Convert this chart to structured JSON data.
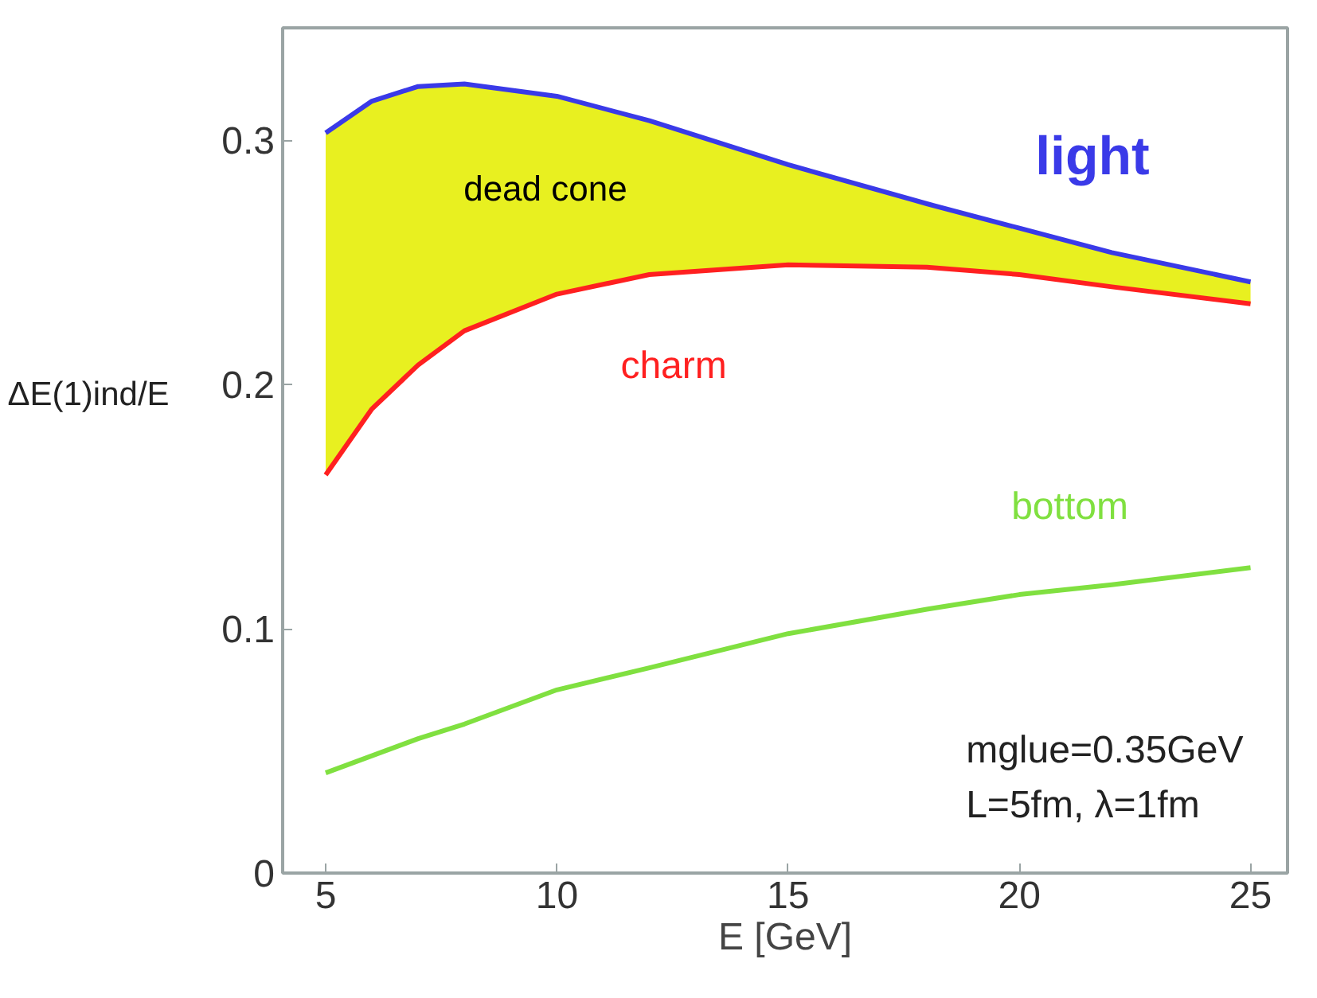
{
  "chart_data": {
    "type": "line",
    "xlabel": "E [GeV]",
    "ylabel": "ΔE(1)ind/E",
    "x": [
      5,
      6,
      7,
      8,
      10,
      12,
      15,
      18,
      20,
      22,
      25
    ],
    "series": [
      {
        "name": "light",
        "color": "#3a3ae8",
        "values": [
          0.303,
          0.316,
          0.322,
          0.323,
          0.318,
          0.308,
          0.29,
          0.274,
          0.264,
          0.254,
          0.242
        ],
        "lower": [
          0.163,
          0.19,
          0.208,
          0.222,
          0.237,
          0.245,
          0.249,
          0.248,
          0.245,
          0.24,
          0.233
        ],
        "upper": [
          0.303,
          0.316,
          0.322,
          0.323,
          0.318,
          0.308,
          0.29,
          0.274,
          0.264,
          0.254,
          0.242
        ]
      },
      {
        "name": "charm",
        "color": "#ff2020",
        "values": [
          0.163,
          0.19,
          0.208,
          0.222,
          0.237,
          0.245,
          0.249,
          0.248,
          0.245,
          0.24,
          0.233
        ]
      },
      {
        "name": "bottom",
        "color": "#80e040",
        "values": [
          0.041,
          0.048,
          0.055,
          0.061,
          0.075,
          0.084,
          0.098,
          0.108,
          0.114,
          0.118,
          0.125
        ]
      }
    ],
    "annotations": [
      "dead cone",
      "mglue=0.35GeV",
      "L=5fm, λ=1fm"
    ],
    "xlim": [
      4.07,
      25.8
    ],
    "ylim": [
      0,
      0.346
    ],
    "xticks": [
      5,
      10,
      15,
      20,
      25
    ],
    "yticks": [
      0,
      0.1,
      0.2,
      0.3
    ],
    "grid": false,
    "marker": "none",
    "line_style": "solid"
  }
}
